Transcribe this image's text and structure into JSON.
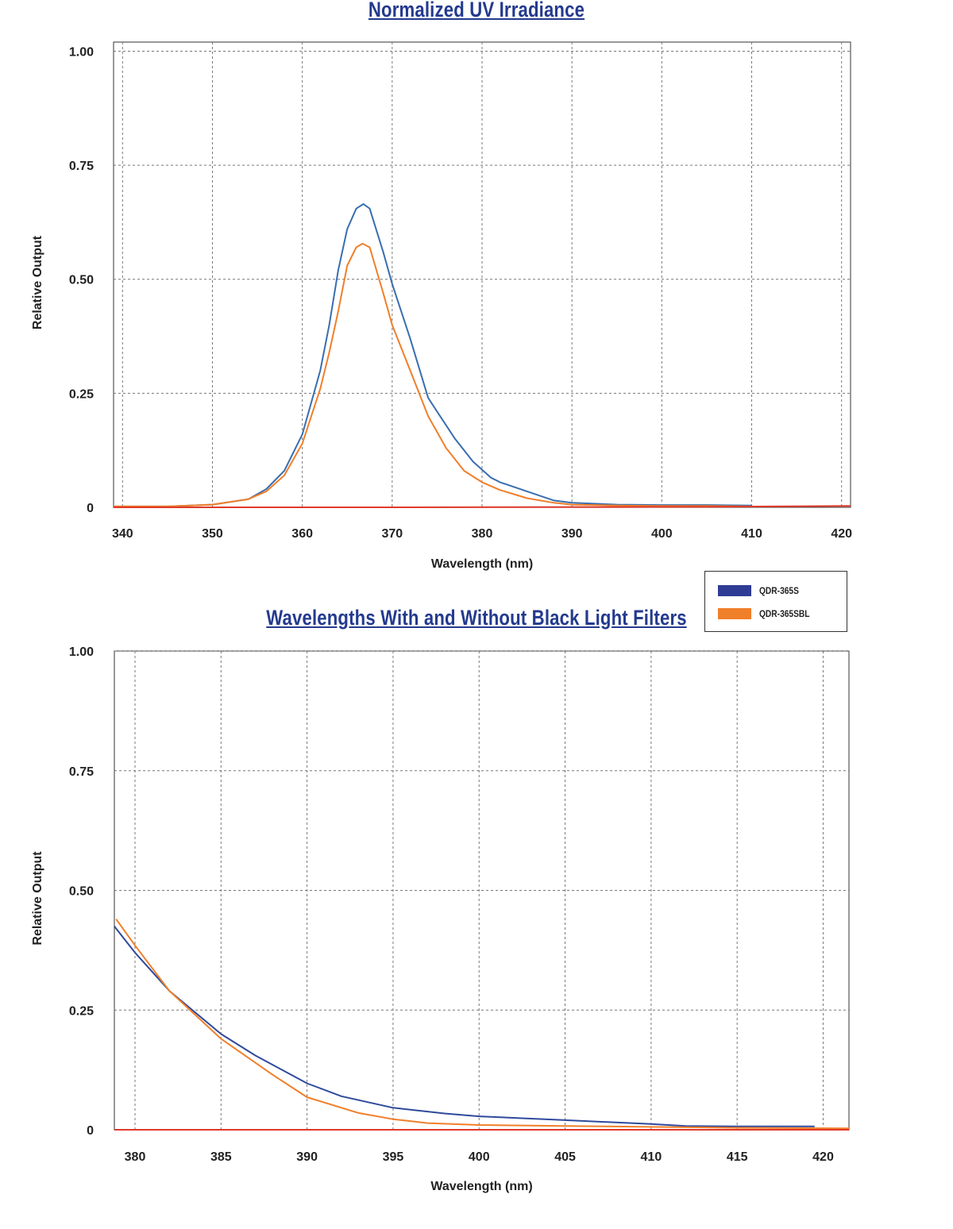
{
  "chart_data": [
    {
      "type": "line",
      "title": "Normalized UV Irradiance",
      "xlabel": "Wavelength (nm)",
      "ylabel": "Relative Output",
      "xlim": [
        339,
        421
      ],
      "ylim": [
        0,
        1.02
      ],
      "x_ticks": [
        {
          "v": 340,
          "label": "340"
        },
        {
          "v": 350,
          "label": "350"
        },
        {
          "v": 360,
          "label": "360"
        },
        {
          "v": 370,
          "label": "370"
        },
        {
          "v": 380,
          "label": "380"
        },
        {
          "v": 390,
          "label": "390"
        },
        {
          "v": 400,
          "label": "400"
        },
        {
          "v": 410,
          "label": "410"
        },
        {
          "v": 420,
          "label": "420"
        }
      ],
      "y_ticks": [
        {
          "v": 0,
          "label": "0"
        },
        {
          "v": 0.25,
          "label": "0.25"
        },
        {
          "v": 0.5,
          "label": "0.50"
        },
        {
          "v": 0.75,
          "label": "0.75"
        },
        {
          "v": 1.0,
          "label": "1.00"
        }
      ],
      "grid": true,
      "series": [
        {
          "name": "QDR-365S",
          "color": "#3a6eaf",
          "points": [
            [
              339,
              0.002
            ],
            [
              345,
              0.002
            ],
            [
              350,
              0.006
            ],
            [
              354,
              0.018
            ],
            [
              356,
              0.04
            ],
            [
              358,
              0.08
            ],
            [
              360,
              0.16
            ],
            [
              362,
              0.3
            ],
            [
              363,
              0.4
            ],
            [
              364,
              0.52
            ],
            [
              365,
              0.61
            ],
            [
              366,
              0.655
            ],
            [
              366.8,
              0.665
            ],
            [
              367.5,
              0.655
            ],
            [
              369,
              0.56
            ],
            [
              370,
              0.49
            ],
            [
              372,
              0.37
            ],
            [
              374,
              0.24
            ],
            [
              375,
              0.21
            ],
            [
              377,
              0.15
            ],
            [
              379,
              0.1
            ],
            [
              381,
              0.065
            ],
            [
              382,
              0.055
            ],
            [
              385,
              0.035
            ],
            [
              388,
              0.015
            ],
            [
              390,
              0.01
            ],
            [
              395,
              0.006
            ],
            [
              400,
              0.005
            ],
            [
              405,
              0.005
            ],
            [
              410,
              0.004
            ]
          ]
        },
        {
          "name": "QDR-365SBL",
          "color": "#f07f2a",
          "points": [
            [
              339,
              0.002
            ],
            [
              345,
              0.002
            ],
            [
              350,
              0.006
            ],
            [
              354,
              0.018
            ],
            [
              356,
              0.035
            ],
            [
              358,
              0.07
            ],
            [
              360,
              0.14
            ],
            [
              362,
              0.26
            ],
            [
              363,
              0.34
            ],
            [
              364,
              0.43
            ],
            [
              365,
              0.53
            ],
            [
              366,
              0.57
            ],
            [
              366.7,
              0.578
            ],
            [
              367.5,
              0.57
            ],
            [
              369,
              0.47
            ],
            [
              370,
              0.4
            ],
            [
              372,
              0.3
            ],
            [
              374,
              0.2
            ],
            [
              376,
              0.13
            ],
            [
              378,
              0.08
            ],
            [
              380,
              0.055
            ],
            [
              382,
              0.038
            ],
            [
              385,
              0.02
            ],
            [
              388,
              0.01
            ],
            [
              390,
              0.006
            ],
            [
              395,
              0.004
            ],
            [
              400,
              0.003
            ],
            [
              405,
              0.003
            ],
            [
              410,
              0.002
            ]
          ]
        },
        {
          "color": "#e03a2a",
          "points": [
            [
              339,
              0.0
            ],
            [
              370,
              0.0
            ],
            [
              405,
              0.001
            ],
            [
              421,
              0.003
            ]
          ]
        }
      ]
    },
    {
      "type": "line",
      "title": "Wavelengths With and Without Black Light Filters",
      "xlabel": "Wavelength (nm)",
      "ylabel": "Relative Output",
      "xlim": [
        378.8,
        421.5
      ],
      "ylim": [
        0,
        1.0
      ],
      "x_ticks": [
        {
          "v": 380,
          "label": "380"
        },
        {
          "v": 385,
          "label": "385"
        },
        {
          "v": 390,
          "label": "390"
        },
        {
          "v": 395,
          "label": "395"
        },
        {
          "v": 400,
          "label": "400"
        },
        {
          "v": 405,
          "label": "405"
        },
        {
          "v": 410,
          "label": "410"
        },
        {
          "v": 415,
          "label": "415"
        },
        {
          "v": 420,
          "label": "420"
        }
      ],
      "y_ticks": [
        {
          "v": 0,
          "label": "0"
        },
        {
          "v": 0.25,
          "label": "0.25"
        },
        {
          "v": 0.5,
          "label": "0.50"
        },
        {
          "v": 0.75,
          "label": "0.75"
        },
        {
          "v": 1.0,
          "label": "1.00"
        }
      ],
      "grid": true,
      "series": [
        {
          "name": "QDR-365S",
          "color": "#2f4a9c",
          "points": [
            [
              378.8,
              0.425
            ],
            [
              380,
              0.37
            ],
            [
              382,
              0.29
            ],
            [
              385,
              0.2
            ],
            [
              387,
              0.155
            ],
            [
              390,
              0.097
            ],
            [
              392,
              0.07
            ],
            [
              395,
              0.046
            ],
            [
              398,
              0.034
            ],
            [
              400,
              0.028
            ],
            [
              405,
              0.02
            ],
            [
              410,
              0.012
            ],
            [
              412,
              0.008
            ],
            [
              415,
              0.007
            ],
            [
              419.5,
              0.007
            ]
          ]
        },
        {
          "name": "QDR-365SBL",
          "color": "#f07f2a",
          "points": [
            [
              378.9,
              0.44
            ],
            [
              380,
              0.385
            ],
            [
              382,
              0.29
            ],
            [
              385,
              0.19
            ],
            [
              388,
              0.115
            ],
            [
              390,
              0.068
            ],
            [
              393,
              0.035
            ],
            [
              395,
              0.022
            ],
            [
              397,
              0.014
            ],
            [
              400,
              0.01
            ],
            [
              405,
              0.008
            ],
            [
              410,
              0.006
            ],
            [
              415,
              0.004
            ],
            [
              421.5,
              0.003
            ]
          ]
        },
        {
          "color": "#e03a2a",
          "points": [
            [
              378.8,
              0.0
            ],
            [
              421.5,
              0.0
            ]
          ]
        }
      ]
    }
  ],
  "legend": {
    "items": [
      {
        "label": "QDR-365S",
        "color": "#2f3c94"
      },
      {
        "label": "QDR-365SBL",
        "color": "#f07f2a"
      }
    ]
  }
}
